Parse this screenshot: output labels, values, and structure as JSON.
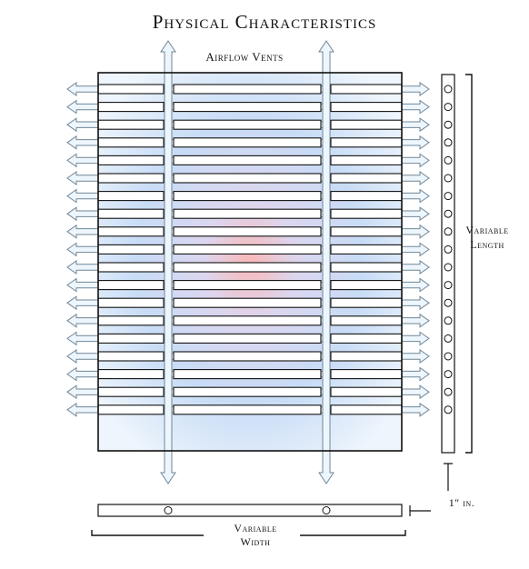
{
  "title": "Physical Characteristics",
  "labels": {
    "airflow_vents": "Airflow Vents",
    "variable_length_line1": "Variable",
    "variable_length_line2": "Length",
    "variable_width_line1": "Variable",
    "variable_width_line2": "Width",
    "thickness": "1″ in."
  },
  "grid": {
    "slot_rows": 19,
    "side_holes": 19,
    "bottom_holes": 2
  },
  "colors": {
    "outline": "#111111",
    "arrow_fill": "#eef6fd",
    "arrow_stroke": "#6f8696",
    "glow_center": "#f9b8b8",
    "glow_mid": "#c8dcf6"
  }
}
